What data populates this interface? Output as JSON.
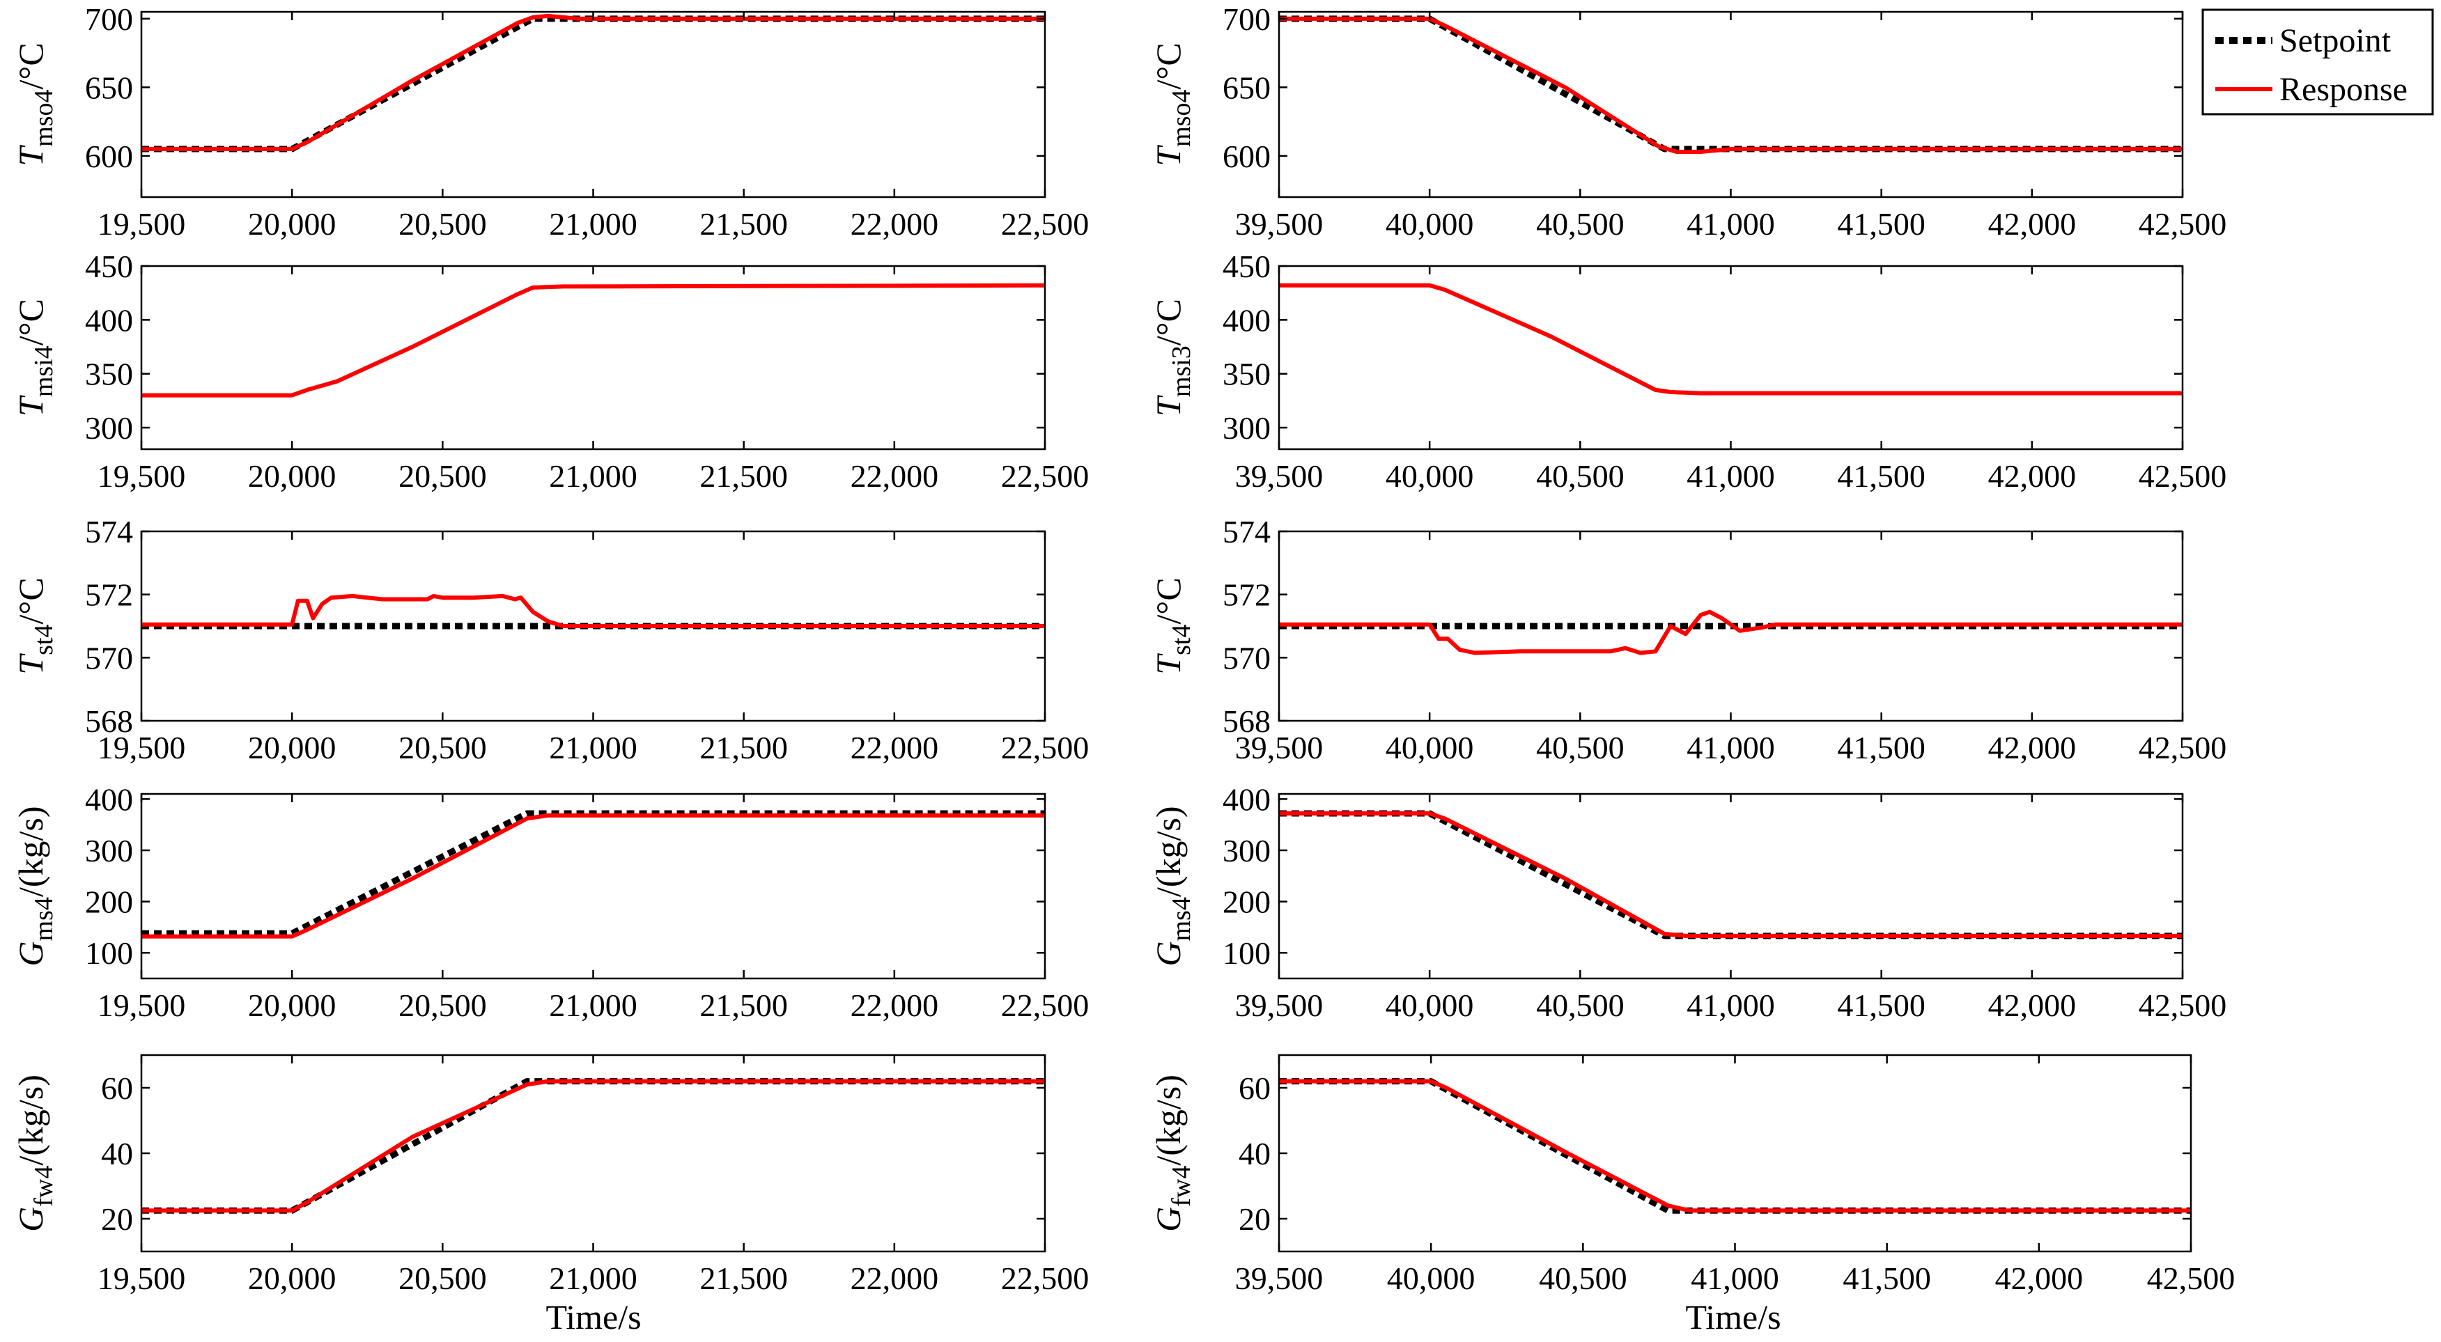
{
  "legend": {
    "setpoint_label": "Setpoint",
    "response_label": "Response",
    "setpoint_color": "#000000",
    "response_color": "#ff0000"
  },
  "x_axis_label": "Time/s",
  "chart_data": [
    {
      "id": "tmso4-up",
      "type": "line",
      "title": "",
      "ylabel_main": "T",
      "ylabel_sub": "mso4",
      "ylabel_unit": "/°C",
      "xlim": [
        19500,
        22500
      ],
      "ylim": [
        570,
        705
      ],
      "xticks": [
        19500,
        20000,
        20500,
        21000,
        21500,
        22000,
        22500
      ],
      "xtick_labels": [
        "19,500",
        "20,000",
        "20,500",
        "21,000",
        "21,500",
        "22,000",
        "22,500"
      ],
      "yticks": [
        600,
        650,
        700
      ],
      "ytick_labels": [
        "600",
        "650",
        "700"
      ],
      "show_xlabel": false,
      "series": [
        {
          "name": "Setpoint",
          "x": [
            19500,
            20000,
            20800,
            22500
          ],
          "y": [
            605,
            605,
            700,
            700
          ]
        },
        {
          "name": "Response",
          "x": [
            19500,
            20000,
            20050,
            20400,
            20750,
            20800,
            20850,
            20950,
            22500
          ],
          "y": [
            605,
            605,
            610,
            655,
            697,
            701,
            702,
            700,
            700
          ]
        }
      ]
    },
    {
      "id": "tmso4-down",
      "type": "line",
      "title": "",
      "ylabel_main": "T",
      "ylabel_sub": "mso4",
      "ylabel_unit": "/°C",
      "xlim": [
        39500,
        42500
      ],
      "ylim": [
        570,
        705
      ],
      "xticks": [
        39500,
        40000,
        40500,
        41000,
        41500,
        42000,
        42500
      ],
      "xtick_labels": [
        "39,500",
        "40,000",
        "40,500",
        "41,000",
        "41,500",
        "42,000",
        "42,500"
      ],
      "yticks": [
        600,
        650,
        700
      ],
      "ytick_labels": [
        "600",
        "650",
        "700"
      ],
      "show_xlabel": false,
      "series": [
        {
          "name": "Setpoint",
          "x": [
            39500,
            40000,
            40780,
            42500
          ],
          "y": [
            700,
            700,
            605,
            605
          ]
        },
        {
          "name": "Response",
          "x": [
            39500,
            40000,
            40050,
            40450,
            40760,
            40820,
            40900,
            41000,
            42500
          ],
          "y": [
            700,
            700,
            695,
            650,
            607,
            603,
            603,
            605,
            605
          ]
        }
      ]
    },
    {
      "id": "tmsi4",
      "type": "line",
      "title": "",
      "ylabel_main": "T",
      "ylabel_sub": "msi4",
      "ylabel_unit": "/°C",
      "xlim": [
        19500,
        22500
      ],
      "ylim": [
        280,
        450
      ],
      "xticks": [
        19500,
        20000,
        20500,
        21000,
        21500,
        22000,
        22500
      ],
      "xtick_labels": [
        "19,500",
        "20,000",
        "20,500",
        "21,000",
        "21,500",
        "22,000",
        "22,500"
      ],
      "yticks": [
        300,
        350,
        400,
        450
      ],
      "ytick_labels": [
        "300",
        "350",
        "400",
        "450"
      ],
      "show_xlabel": false,
      "series": [
        {
          "name": "Response",
          "x": [
            19500,
            20000,
            20050,
            20150,
            20400,
            20750,
            20800,
            20900,
            22500
          ],
          "y": [
            330,
            330,
            335,
            343,
            375,
            424,
            430,
            431,
            432
          ]
        }
      ]
    },
    {
      "id": "tmsi3",
      "type": "line",
      "title": "",
      "ylabel_main": "T",
      "ylabel_sub": "msi3",
      "ylabel_unit": "/°C",
      "xlim": [
        39500,
        42500
      ],
      "ylim": [
        280,
        450
      ],
      "xticks": [
        39500,
        40000,
        40500,
        41000,
        41500,
        42000,
        42500
      ],
      "xtick_labels": [
        "39,500",
        "40,000",
        "40,500",
        "41,000",
        "41,500",
        "42,000",
        "42,500"
      ],
      "yticks": [
        300,
        350,
        400,
        450
      ],
      "ytick_labels": [
        "300",
        "350",
        "400",
        "450"
      ],
      "show_xlabel": false,
      "series": [
        {
          "name": "Response",
          "x": [
            39500,
            40000,
            40050,
            40400,
            40750,
            40800,
            40900,
            42500
          ],
          "y": [
            432,
            432,
            428,
            385,
            335,
            333,
            332,
            332
          ]
        }
      ]
    },
    {
      "id": "tst4-up",
      "type": "line",
      "title": "",
      "ylabel_main": "T",
      "ylabel_sub": "st4",
      "ylabel_unit": "/°C",
      "xlim": [
        19500,
        22500
      ],
      "ylim": [
        568,
        574
      ],
      "xticks": [
        19500,
        20000,
        20500,
        21000,
        21500,
        22000,
        22500
      ],
      "xtick_labels": [
        "19,500",
        "20,000",
        "20,500",
        "21,000",
        "21,500",
        "22,000",
        "22,500"
      ],
      "yticks": [
        568,
        570,
        572,
        574
      ],
      "ytick_labels": [
        "568",
        "570",
        "572",
        "574"
      ],
      "show_xlabel": false,
      "series": [
        {
          "name": "Setpoint",
          "x": [
            19500,
            22500
          ],
          "y": [
            571,
            571
          ]
        },
        {
          "name": "Response",
          "x": [
            19500,
            20000,
            20020,
            20050,
            20070,
            20100,
            20130,
            20200,
            20300,
            20450,
            20470,
            20500,
            20600,
            20700,
            20740,
            20760,
            20800,
            20850,
            20900,
            22500
          ],
          "y": [
            571.05,
            571.05,
            571.8,
            571.8,
            571.25,
            571.7,
            571.9,
            571.95,
            571.85,
            571.85,
            571.95,
            571.9,
            571.9,
            571.95,
            571.85,
            571.9,
            571.45,
            571.15,
            571.0,
            571.0
          ]
        }
      ]
    },
    {
      "id": "tst4-down",
      "type": "line",
      "title": "",
      "ylabel_main": "T",
      "ylabel_sub": "st4",
      "ylabel_unit": "/°C",
      "xlim": [
        39500,
        42500
      ],
      "ylim": [
        568,
        574
      ],
      "xticks": [
        39500,
        40000,
        40500,
        41000,
        41500,
        42000,
        42500
      ],
      "xtick_labels": [
        "39,500",
        "40,000",
        "40,500",
        "41,000",
        "41,500",
        "42,000",
        "42,500"
      ],
      "yticks": [
        568,
        570,
        572,
        574
      ],
      "ytick_labels": [
        "568",
        "570",
        "572",
        "574"
      ],
      "show_xlabel": false,
      "series": [
        {
          "name": "Setpoint",
          "x": [
            39500,
            42500
          ],
          "y": [
            571,
            571
          ]
        },
        {
          "name": "Response",
          "x": [
            39500,
            40000,
            40030,
            40060,
            40100,
            40150,
            40300,
            40600,
            40650,
            40700,
            40750,
            40800,
            40850,
            40900,
            40930,
            40970,
            41030,
            41100,
            41150,
            42500
          ],
          "y": [
            571.05,
            571.05,
            570.6,
            570.6,
            570.25,
            570.15,
            570.2,
            570.2,
            570.3,
            570.15,
            570.2,
            571.0,
            570.75,
            571.35,
            571.45,
            571.25,
            570.85,
            570.95,
            571.05,
            571.05
          ]
        }
      ]
    },
    {
      "id": "gms4-up",
      "type": "line",
      "title": "",
      "ylabel_main": "G",
      "ylabel_sub": "ms4",
      "ylabel_unit": "/(kg/s)",
      "xlim": [
        19500,
        22500
      ],
      "ylim": [
        50,
        410
      ],
      "xticks": [
        19500,
        20000,
        20500,
        21000,
        21500,
        22000,
        22500
      ],
      "xtick_labels": [
        "19,500",
        "20,000",
        "20,500",
        "21,000",
        "21,500",
        "22,000",
        "22,500"
      ],
      "yticks": [
        100,
        200,
        300,
        400
      ],
      "ytick_labels": [
        "100",
        "200",
        "300",
        "400"
      ],
      "show_xlabel": false,
      "series": [
        {
          "name": "Setpoint",
          "x": [
            19500,
            20000,
            20780,
            22500
          ],
          "y": [
            138,
            138,
            372,
            372
          ]
        },
        {
          "name": "Response",
          "x": [
            19500,
            20000,
            20050,
            20400,
            20780,
            20850,
            22500
          ],
          "y": [
            132,
            132,
            145,
            245,
            362,
            368,
            368
          ]
        }
      ]
    },
    {
      "id": "gms4-down",
      "type": "line",
      "title": "",
      "ylabel_main": "G",
      "ylabel_sub": "ms4",
      "ylabel_unit": "/(kg/s)",
      "xlim": [
        39500,
        42500
      ],
      "ylim": [
        50,
        410
      ],
      "xticks": [
        39500,
        40000,
        40500,
        41000,
        41500,
        42000,
        42500
      ],
      "xtick_labels": [
        "39,500",
        "40,000",
        "40,500",
        "41,000",
        "41,500",
        "42,000",
        "42,500"
      ],
      "yticks": [
        100,
        200,
        300,
        400
      ],
      "ytick_labels": [
        "100",
        "200",
        "300",
        "400"
      ],
      "show_xlabel": false,
      "series": [
        {
          "name": "Setpoint",
          "x": [
            39500,
            40000,
            40780,
            42500
          ],
          "y": [
            372,
            372,
            133,
            133
          ]
        },
        {
          "name": "Response",
          "x": [
            39500,
            40000,
            40050,
            40450,
            40780,
            40850,
            42500
          ],
          "y": [
            372,
            372,
            362,
            245,
            137,
            133,
            133
          ]
        }
      ]
    },
    {
      "id": "gfw4-up",
      "type": "line",
      "title": "",
      "ylabel_main": "G",
      "ylabel_sub": "fw4",
      "ylabel_unit": "/(kg/s)",
      "xlim": [
        19500,
        22500
      ],
      "ylim": [
        10,
        70
      ],
      "xticks": [
        19500,
        20000,
        20500,
        21000,
        21500,
        22000,
        22500
      ],
      "xtick_labels": [
        "19,500",
        "20,000",
        "20,500",
        "21,000",
        "21,500",
        "22,000",
        "22,500"
      ],
      "yticks": [
        20,
        40,
        60
      ],
      "ytick_labels": [
        "20",
        "40",
        "60"
      ],
      "show_xlabel": true,
      "series": [
        {
          "name": "Setpoint",
          "x": [
            19500,
            20000,
            20780,
            22500
          ],
          "y": [
            22.5,
            22.5,
            62,
            62
          ]
        },
        {
          "name": "Response",
          "x": [
            19500,
            20000,
            20050,
            20400,
            20780,
            20850,
            22500
          ],
          "y": [
            22.5,
            22.5,
            25,
            45,
            61,
            62,
            62
          ]
        }
      ]
    },
    {
      "id": "gfw4-down",
      "type": "line",
      "title": "",
      "ylabel_main": "G",
      "ylabel_sub": "fw4",
      "ylabel_unit": "/(kg/s)",
      "xlim": [
        39500,
        42500
      ],
      "ylim": [
        10,
        70
      ],
      "xticks": [
        39500,
        40000,
        40500,
        41000,
        41500,
        42000,
        42500
      ],
      "xtick_labels": [
        "39,500",
        "40,000",
        "40,500",
        "41,000",
        "41,500",
        "42,000",
        "42,500"
      ],
      "yticks": [
        20,
        40,
        60
      ],
      "ytick_labels": [
        "20",
        "40",
        "60"
      ],
      "show_xlabel": true,
      "series": [
        {
          "name": "Setpoint",
          "x": [
            39500,
            40000,
            40780,
            42500
          ],
          "y": [
            62,
            62,
            22.5,
            22.5
          ]
        },
        {
          "name": "Response",
          "x": [
            39500,
            40000,
            40050,
            40450,
            40780,
            40850,
            42500
          ],
          "y": [
            62,
            62,
            60,
            40,
            24,
            22.5,
            22.5
          ]
        }
      ]
    }
  ]
}
